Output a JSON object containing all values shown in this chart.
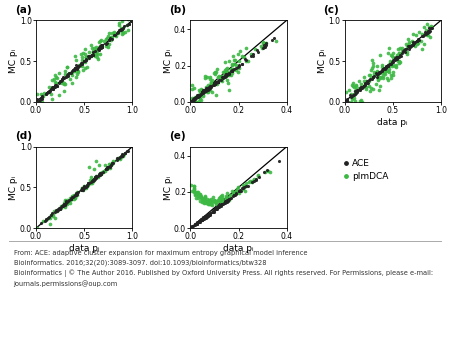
{
  "subplots": [
    {
      "label": "a",
      "xlim": [
        0.0,
        1.0
      ],
      "ylim": [
        0.0,
        1.0
      ],
      "xticks": [
        0.0,
        0.5,
        1.0
      ],
      "yticks": [
        0.0,
        0.5,
        1.0
      ],
      "xticklabels": [
        "0.0",
        "0.5",
        "1.0"
      ],
      "yticklabels": [
        "0.0",
        "0.5",
        "1.0"
      ]
    },
    {
      "label": "b",
      "xlim": [
        0.0,
        0.4
      ],
      "ylim": [
        0.0,
        0.45
      ],
      "xticks": [
        0.0,
        0.2,
        0.4
      ],
      "yticks": [
        0.0,
        0.2,
        0.4
      ],
      "xticklabels": [
        "0.0",
        "0.2",
        "0.4"
      ],
      "yticklabels": [
        "0.0",
        "0.2",
        "0.4"
      ]
    },
    {
      "label": "c",
      "xlim": [
        0.0,
        1.0
      ],
      "ylim": [
        0.0,
        1.0
      ],
      "xticks": [
        0.0,
        0.5,
        1.0
      ],
      "yticks": [
        0.0,
        0.5,
        1.0
      ],
      "xticklabels": [
        "0.0",
        "0.5",
        "1.0"
      ],
      "yticklabels": [
        "0.0",
        "0.5",
        "1.0"
      ]
    },
    {
      "label": "d",
      "xlim": [
        0.0,
        1.0
      ],
      "ylim": [
        0.0,
        1.0
      ],
      "xticks": [
        0.0,
        0.5,
        1.0
      ],
      "yticks": [
        0.0,
        0.5,
        1.0
      ],
      "xticklabels": [
        "0.0",
        "0.5",
        "1.0"
      ],
      "yticklabels": [
        "0.0",
        "0.5",
        "1.0"
      ]
    },
    {
      "label": "e",
      "xlim": [
        0.0,
        0.4
      ],
      "ylim": [
        0.0,
        0.45
      ],
      "xticks": [
        0.0,
        0.2,
        0.4
      ],
      "yticks": [
        0.0,
        0.2,
        0.4
      ],
      "xticklabels": [
        "0.0",
        "0.2",
        "0.4"
      ],
      "yticklabels": [
        "0.0",
        "0.2",
        "0.4"
      ]
    }
  ],
  "ace_color": "#222222",
  "plm_color": "#3cb843",
  "marker_size_ace": 5,
  "marker_size_plm": 7,
  "legend_ace_label": "ACE",
  "legend_plm_label": "plmDCA",
  "xlabel_bottom": "data pᵢ",
  "ylabel_left": "MC pᵢ",
  "footer_line1": "From: ACE: adaptive cluster expansion for maximum entropy graphical model inference",
  "footer_line2": "Bioinformatics. 2016;32(20):3089-3097. doi:10.1093/bioinformatics/btw328",
  "footer_line3": "Bioinformatics | © The Author 2016. Published by Oxford University Press. All rights reserved. For Permissions, please e-mail:",
  "footer_line4": "journals.permissions@oup.com",
  "bg_color": "#ffffff",
  "footer_bg": "#eeeeee",
  "sep_line_color": "#aaaaaa",
  "tick_fontsize": 5.5,
  "label_fontsize": 6.5,
  "panel_label_fontsize": 7.5
}
